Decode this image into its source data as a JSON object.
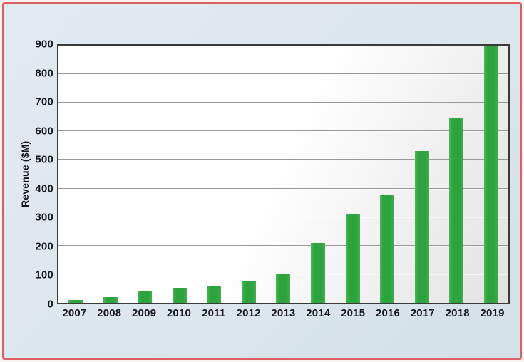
{
  "chart_data": {
    "type": "bar",
    "title": "",
    "ylabel": "Revenue ($M)",
    "xlabel": "",
    "categories": [
      "2007",
      "2008",
      "2009",
      "2010",
      "2011",
      "2012",
      "2013",
      "2014",
      "2015",
      "2016",
      "2017",
      "2018",
      "2019"
    ],
    "values": [
      10,
      20,
      40,
      52,
      60,
      75,
      100,
      210,
      310,
      380,
      530,
      645,
      900
    ],
    "ylim": [
      0,
      900
    ],
    "ytick_step": 100,
    "grid": true,
    "legend_position": "none",
    "bar_color": "#2ba43c",
    "frame_border_color": "#dd5f64",
    "background_color": "#dce7ed",
    "plot_background": "#ffffff",
    "gridline_color": "#989898",
    "axis_border_color": "#3a3a3a"
  }
}
